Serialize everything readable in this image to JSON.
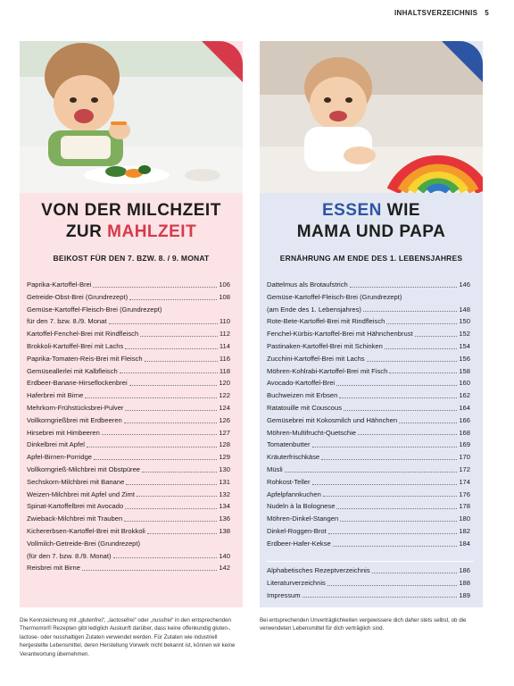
{
  "header": {
    "section": "INHALTSVERZEICHNIS",
    "page": "5"
  },
  "colors": {
    "left_bg": "#fbe3e6",
    "right_bg": "#e3e7f3",
    "accent_red": "#d63a4a",
    "accent_blue": "#2c55a4"
  },
  "left": {
    "title_line1": "VON DER MILCHZEIT",
    "title_zur": "ZUR ",
    "title_accent": "MAHLZEIT",
    "subtitle": "BEIKOST FÜR DEN 7. BZW. 8. / 9. MONAT",
    "items": [
      {
        "title": "Paprika-Kartoffel-Brei",
        "page": "106"
      },
      {
        "title": "Getreide-Obst-Brei (Grundrezept)",
        "page": "108"
      },
      {
        "title": "Gemüse-Kartoffel-Fleisch-Brei (Grundrezept)",
        "page": ""
      },
      {
        "title": "für den 7. bzw. 8./9. Monat",
        "page": "110"
      },
      {
        "title": "Kartoffel-Fenchel-Brei mit Rindfleisch",
        "page": "112"
      },
      {
        "title": "Brokkoli-Kartoffel-Brei mit Lachs",
        "page": "114"
      },
      {
        "title": "Paprika-Tomaten-Reis-Brei mit Fleisch",
        "page": "116"
      },
      {
        "title": "Gemüseallerlei mit Kalbfleisch",
        "page": "118"
      },
      {
        "title": "Erdbeer-Banane-Hirseflockenbrei",
        "page": "120"
      },
      {
        "title": "Haferbrei mit Birne",
        "page": "122"
      },
      {
        "title": "Mehrkorn-Frühstücksbrei-Pulver",
        "page": "124"
      },
      {
        "title": "Vollkorngrießbrei mit Erdbeeren",
        "page": "126"
      },
      {
        "title": "Hirsebrei mit Himbeeren",
        "page": "127"
      },
      {
        "title": "Dinkelbrei mit Apfel",
        "page": "128"
      },
      {
        "title": "Apfel-Birnen-Porridge",
        "page": "129"
      },
      {
        "title": "Vollkorngrieß-Milchbrei mit Obstpüree",
        "page": "130"
      },
      {
        "title": "Sechskorn-Milchbrei mit Banane",
        "page": "131"
      },
      {
        "title": "Weizen-Milchbrei mit Apfel und Zimt",
        "page": "132"
      },
      {
        "title": "Spinat-Kartoffelbrei mit Avocado",
        "page": "134"
      },
      {
        "title": "Zwieback-Milchbrei mit Trauben",
        "page": "136"
      },
      {
        "title": "Kichererbsen-Kartoffel-Brei mit Brokkoli",
        "page": "138"
      },
      {
        "title": "Vollmilch-Getreide-Brei (Grundrezept)",
        "page": ""
      },
      {
        "title": "(für den 7. bzw. 8./9. Monat)",
        "page": "140"
      },
      {
        "title": "Reisbrei mit Birne",
        "page": "142"
      }
    ]
  },
  "right": {
    "title_accent": "ESSEN",
    "title_rest1": " WIE",
    "title_line2": "MAMA UND PAPA",
    "subtitle": "ERNÄHRUNG AM ENDE DES 1. LEBENSJAHRES",
    "items": [
      {
        "title": "Dattelmus als Brotaufstrich",
        "page": "146"
      },
      {
        "title": "Gemüse-Kartoffel-Fleisch-Brei (Grundrezept)",
        "page": ""
      },
      {
        "title": "(am Ende des 1. Lebensjahres)",
        "page": "148"
      },
      {
        "title": "Rote-Bete-Kartoffel-Brei mit Rindfleisch",
        "page": "150"
      },
      {
        "title": "Fenchel-Kürbis-Kartoffel-Brei mit Hähnchenbrust",
        "page": "152"
      },
      {
        "title": "Pastinaken-Kartoffel-Brei mit Schinken",
        "page": "154"
      },
      {
        "title": "Zucchini-Kartoffel-Brei mit Lachs",
        "page": "156"
      },
      {
        "title": "Möhren-Kohlrabi-Kartoffel-Brei mit Fisch",
        "page": "158"
      },
      {
        "title": "Avocado-Kartoffel-Brei",
        "page": "160"
      },
      {
        "title": "Buchweizen mit Erbsen",
        "page": "162"
      },
      {
        "title": "Ratatouille mit Couscous",
        "page": "164"
      },
      {
        "title": "Gemüsebrei mit Kokosmilch und Hähnchen",
        "page": "166"
      },
      {
        "title": "Möhren-Multifrucht-Quetschie",
        "page": "168"
      },
      {
        "title": "Tomatenbutter",
        "page": "169"
      },
      {
        "title": "Kräuterfrischkäse",
        "page": "170"
      },
      {
        "title": "Müsli",
        "page": "172"
      },
      {
        "title": "Rohkost-Teller",
        "page": "174"
      },
      {
        "title": "Apfelpfannkuchen",
        "page": "176"
      },
      {
        "title": "Nudeln à la Bolognese",
        "page": "178"
      },
      {
        "title": "Möhren-Dinkel-Stangen",
        "page": "180"
      },
      {
        "title": "Dinkel-Roggen-Brot",
        "page": "182"
      },
      {
        "title": "Erdbeer-Hafer-Kekse",
        "page": "184"
      }
    ],
    "extra_items": [
      {
        "title": "Alphabetisches Rezeptverzeichnis",
        "page": "186"
      },
      {
        "title": "Literaturverzeichnis",
        "page": "188"
      },
      {
        "title": "Impressum",
        "page": "189"
      }
    ]
  },
  "footnotes": {
    "left": "Die Kennzeichnung mit „glutenfrei“, „lactosefrei“ oder „nussfrei“ in den entsprechenden Thermomix® Rezepten gibt lediglich Auskunft darüber, dass keine offenkundig gluten-, lactose- oder nusshaltigen Zutaten verwendet werden. Für Zutaten wie industriell hergestellte Lebensmittel, deren Herstellung Vorwerk nicht bekannt ist, können wir keine Verantwortung übernehmen.",
    "right": "Bei entsprechenden Unverträglichkeiten vergewissere dich daher stets selbst, ob die verwendeten Lebensmittel für dich verträglich sind."
  }
}
